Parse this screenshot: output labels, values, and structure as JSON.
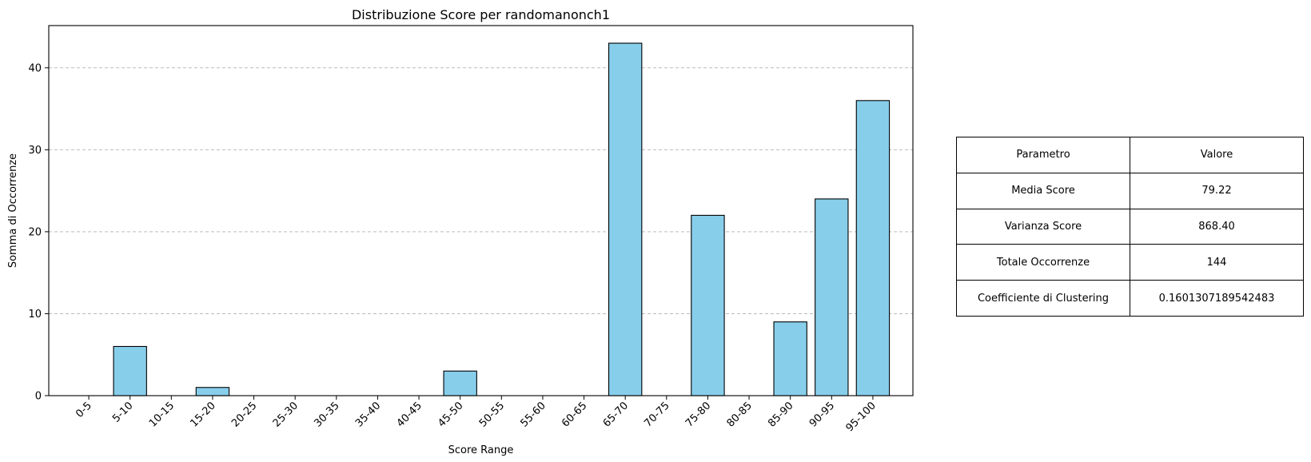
{
  "chart_data": {
    "type": "bar",
    "title": "Distribuzione Score per randomanonch1",
    "xlabel": "Score Range",
    "ylabel": "Somma di Occorrenze",
    "categories": [
      "0-5",
      "5-10",
      "10-15",
      "15-20",
      "20-25",
      "25-30",
      "30-35",
      "35-40",
      "40-45",
      "45-50",
      "50-55",
      "55-60",
      "60-65",
      "65-70",
      "70-75",
      "75-80",
      "80-85",
      "85-90",
      "90-95",
      "95-100"
    ],
    "values": [
      0,
      6,
      0,
      1,
      0,
      0,
      0,
      0,
      0,
      3,
      0,
      0,
      0,
      43,
      0,
      22,
      0,
      9,
      24,
      36
    ],
    "ylim": [
      0,
      45.15
    ],
    "yticks": [
      0,
      10,
      20,
      30,
      40
    ],
    "grid": "y-dashed",
    "bar_color": "#87ceeb",
    "edge_color": "#000000"
  },
  "table": {
    "header": [
      "Parametro",
      "Valore"
    ],
    "rows": [
      [
        "Media Score",
        "79.22"
      ],
      [
        "Varianza Score",
        "868.40"
      ],
      [
        "Totale Occorrenze",
        "144"
      ],
      [
        "Coefficiente di Clustering",
        "0.1601307189542483"
      ]
    ]
  }
}
